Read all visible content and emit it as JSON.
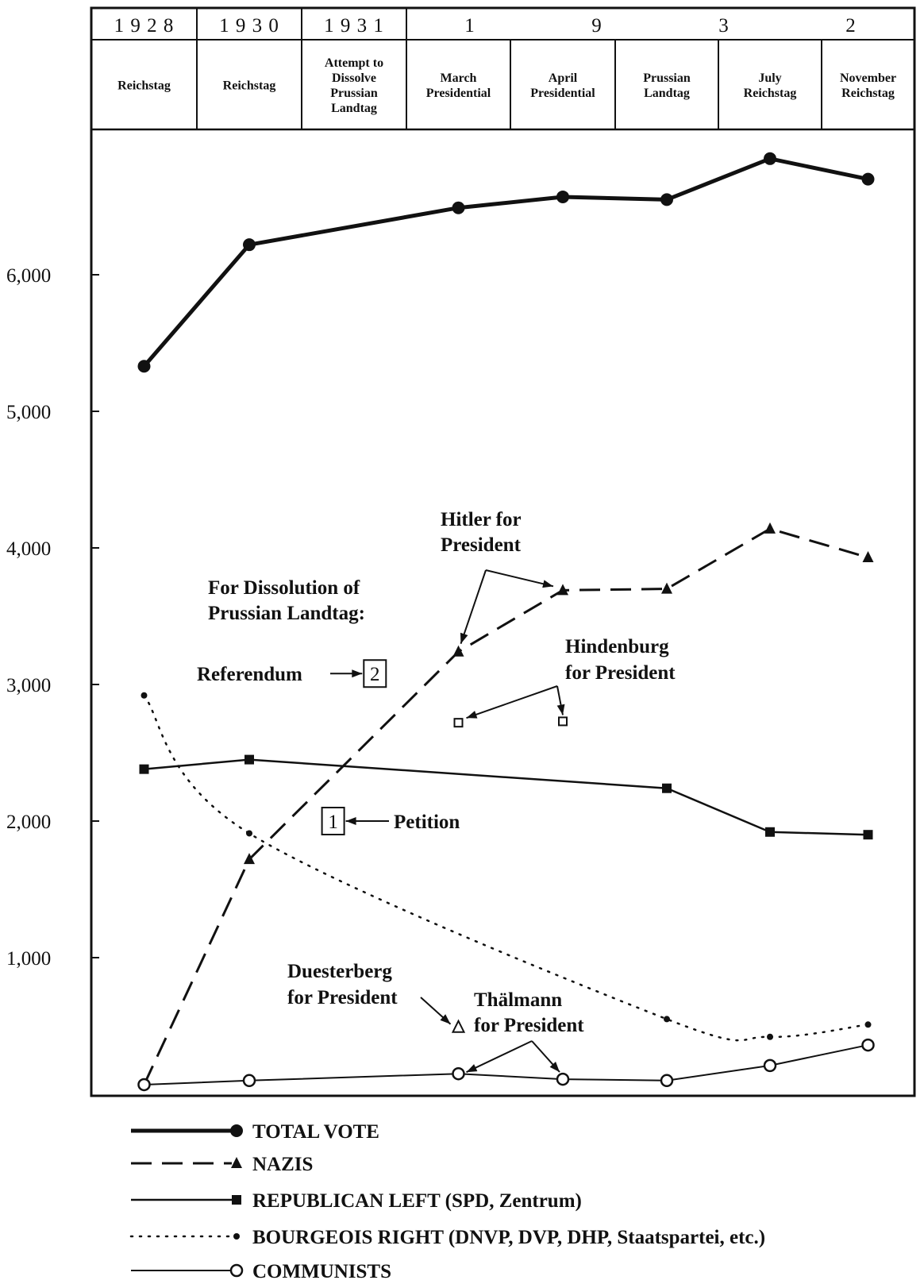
{
  "chart_data": {
    "type": "line",
    "title": "",
    "xlabel": "",
    "ylabel": "",
    "ylim": [
      0,
      7000
    ],
    "yticks": [
      1000,
      2000,
      3000,
      4000,
      5000,
      6000
    ],
    "ytick_labels": [
      "1,000",
      "2,000",
      "3,000",
      "4,000",
      "5,000",
      "6,000"
    ],
    "grid": false,
    "legend_position": "bottom",
    "header": {
      "years": [
        {
          "label": "1 9 2 8",
          "span": 1
        },
        {
          "label": "1 9 3 0",
          "span": 1
        },
        {
          "label": "1 9 3 1",
          "span": 1
        },
        {
          "label": "1 9 3 2",
          "span": 5,
          "spaced_digits": [
            "1",
            "9",
            "3",
            "2"
          ]
        }
      ],
      "elections": [
        [
          "Reichstag"
        ],
        [
          "Reichstag"
        ],
        [
          "Attempt to",
          "Dissolve",
          "Prussian",
          "Landtag"
        ],
        [
          "March",
          "Presidential"
        ],
        [
          "April",
          "Presidential"
        ],
        [
          "Prussian",
          "Landtag"
        ],
        [
          "July",
          "Reichstag"
        ],
        [
          "November",
          "Reichstag"
        ]
      ]
    },
    "categories": [
      "1928 Reichstag",
      "1930 Reichstag",
      "1931 Attempt to Dissolve Prussian Landtag",
      "1932 March Presidential",
      "1932 April Presidential",
      "1932 Prussian Landtag",
      "1932 July Reichstag",
      "1932 November Reichstag"
    ],
    "series": [
      {
        "name": "TOTAL VOTE",
        "style": "thick-solid",
        "marker": "filled-circle",
        "x": [
          0,
          1,
          3,
          4,
          5,
          6,
          7
        ],
        "values": [
          5330,
          6220,
          6490,
          6570,
          6550,
          6850,
          6700
        ]
      },
      {
        "name": "NAZIS",
        "style": "dashed",
        "marker": "filled-triangle",
        "x": [
          0,
          1,
          3,
          4,
          5,
          6,
          7
        ],
        "values": [
          70,
          1720,
          3240,
          3690,
          3700,
          4140,
          3930
        ],
        "hide_first_marker": true
      },
      {
        "name": "REPUBLICAN LEFT (SPD, Zentrum)",
        "style": "solid",
        "marker": "filled-square",
        "x": [
          0,
          1,
          5,
          6,
          7
        ],
        "values": [
          2380,
          2450,
          2240,
          1920,
          1900
        ]
      },
      {
        "name": "BOURGEOIS RIGHT (DNVP, DVP, DHP, Staatspartei, etc.)",
        "style": "dotted",
        "marker": "filled-dot",
        "x": [
          0,
          1,
          5,
          6,
          7
        ],
        "values": [
          2920,
          1910,
          550,
          420,
          510
        ]
      },
      {
        "name": "COMMUNISTS",
        "style": "thin-solid",
        "marker": "open-circle",
        "x": [
          0,
          1,
          3,
          4,
          5,
          6,
          7
        ],
        "values": [
          70,
          100,
          150,
          110,
          100,
          210,
          360
        ]
      }
    ],
    "extra_points": [
      {
        "name": "Hindenburg for President",
        "marker": "open-square",
        "x": [
          3,
          4
        ],
        "values": [
          2720,
          2730
        ]
      },
      {
        "name": "Duesterberg for President",
        "marker": "open-triangle",
        "x": [
          3
        ],
        "values": [
          490
        ]
      },
      {
        "name": "Petition",
        "marker": "boxed-number",
        "label": "1",
        "x": [
          1.8
        ],
        "values": [
          2000
        ]
      },
      {
        "name": "Referendum",
        "marker": "boxed-number",
        "label": "2",
        "x": [
          2.2
        ],
        "values": [
          3080
        ]
      }
    ],
    "annotations": {
      "dissolution_heading": [
        "For Dissolution of",
        "Prussian Landtag:"
      ],
      "referendum": "Referendum",
      "referendum_number": "2",
      "petition": "Petition",
      "petition_number": "1",
      "hitler": [
        "Hitler for",
        "President"
      ],
      "hindenburg": [
        "Hindenburg",
        "for President"
      ],
      "duesterberg": [
        "Duesterberg",
        "for President"
      ],
      "thaelmann": [
        "Thälmann",
        "for President"
      ]
    }
  }
}
